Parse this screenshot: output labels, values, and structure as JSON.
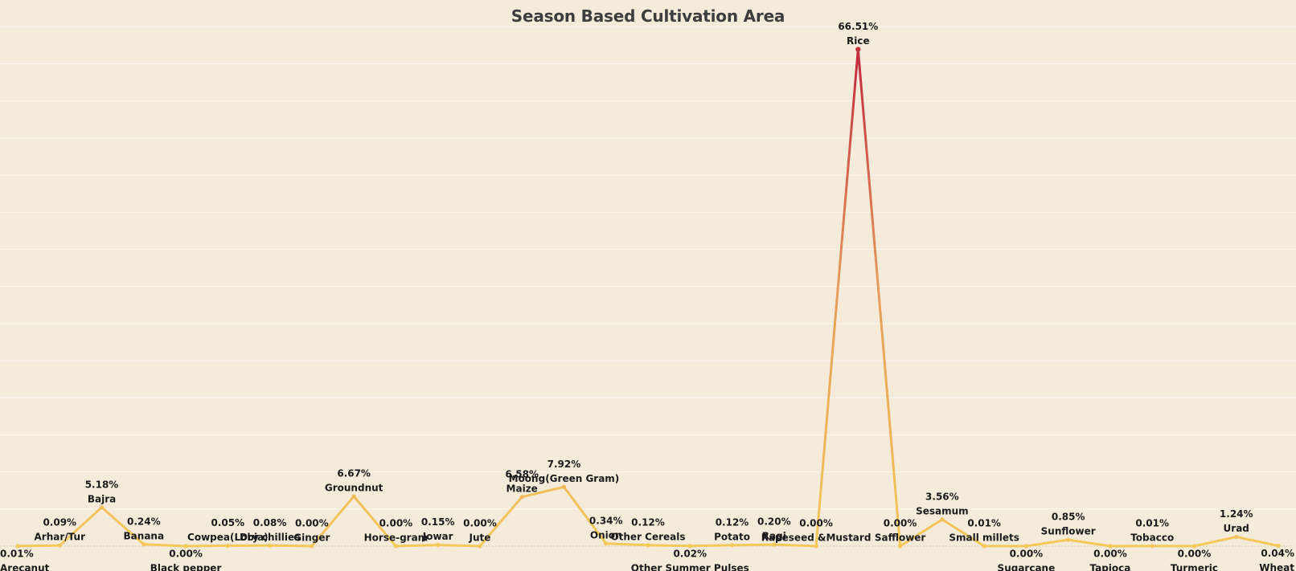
{
  "chart_data": {
    "type": "line",
    "title": "Season Based Cultivation Area",
    "xlabel": "",
    "ylabel": "",
    "ylim": [
      0,
      70
    ],
    "grid": "horizontal",
    "color_low": "#f5c85a",
    "color_high": "#c12d3f",
    "categories": [
      "Arecanut",
      "Arhar/Tur",
      "Bajra",
      "Banana",
      "Black pepper",
      "Cowpea(Lobia)",
      "Dry chillies",
      "Ginger",
      "Groundnut",
      "Horse-gram",
      "Jowar",
      "Jute",
      "Maize",
      "Moong(Green Gram)",
      "Onion",
      "Other Cereals",
      "Other Summer Pulses",
      "Potato",
      "Ragi",
      "Rapeseed &Mustard",
      "Rice",
      "Safflower",
      "Sesamum",
      "Small millets",
      "Sugarcane",
      "Sunflower",
      "Tapioca",
      "Tobacco",
      "Turmeric",
      "Urad",
      "Wheat"
    ],
    "values": [
      0.01,
      0.09,
      5.18,
      0.24,
      0.0,
      0.05,
      0.08,
      0.0,
      6.67,
      0.0,
      0.15,
      0.0,
      6.58,
      7.92,
      0.34,
      0.12,
      0.02,
      0.12,
      0.2,
      0.0,
      66.51,
      0.0,
      3.56,
      0.01,
      0.0,
      0.85,
      0.0,
      0.01,
      0.0,
      1.24,
      0.04
    ],
    "value_labels": [
      "0.01%",
      "0.09%",
      "5.18%",
      "0.24%",
      "0.00%",
      "0.05%",
      "0.08%",
      "0.00%",
      "6.67%",
      "0.00%",
      "0.15%",
      "0.00%",
      "6.58%",
      "7.92%",
      "0.34%",
      "0.12%",
      "0.02%",
      "0.12%",
      "0.20%",
      "0.00%",
      "66.51%",
      "0.00%",
      "3.56%",
      "0.01%",
      "0.00%",
      "0.85%",
      "0.00%",
      "0.01%",
      "0.00%",
      "1.24%",
      "0.04%"
    ]
  }
}
